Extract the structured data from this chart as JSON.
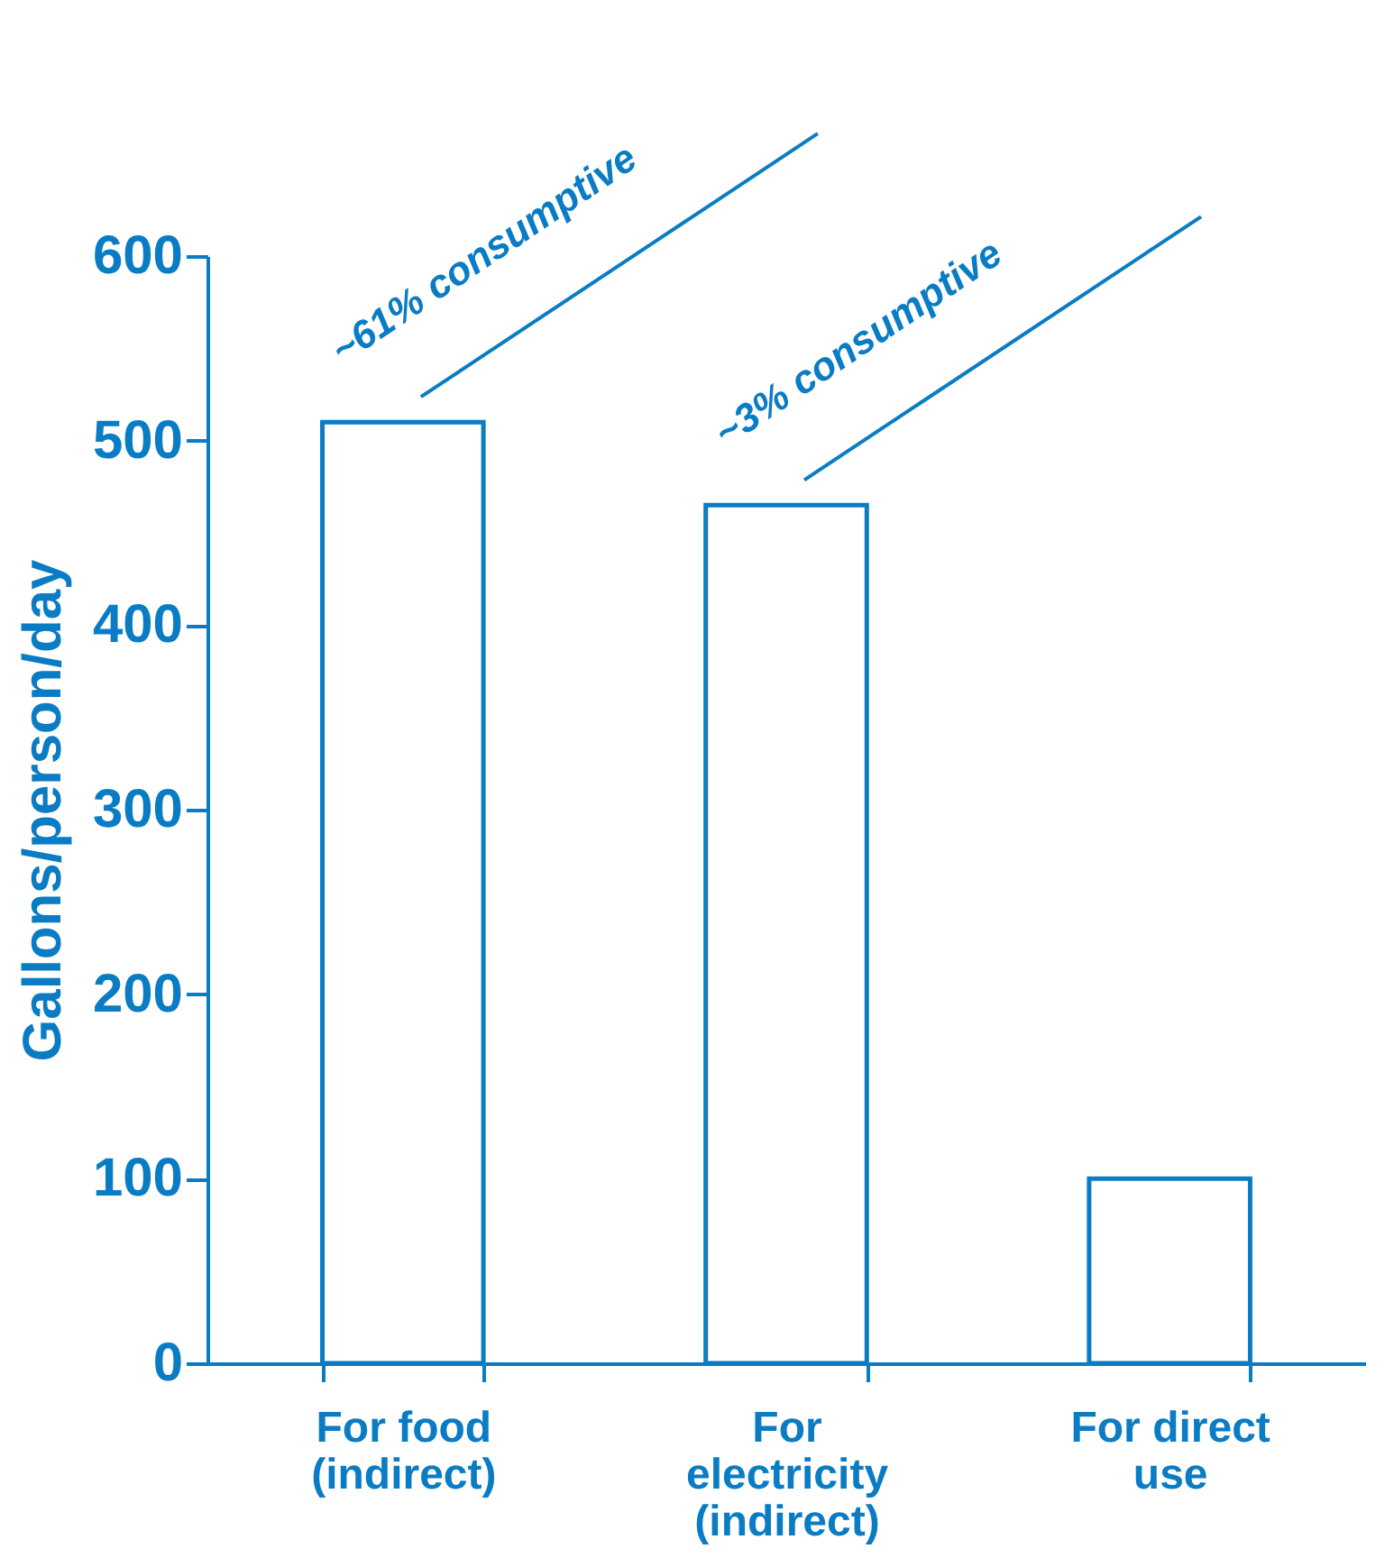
{
  "chart_data": {
    "type": "bar",
    "ylabel": "Gallons/person/day",
    "categories": [
      "For food (indirect)",
      "For electricity (indirect)",
      "For direct use"
    ],
    "values": [
      510,
      465,
      100
    ],
    "color": "#ffffff",
    "ylim": [
      0,
      600
    ],
    "yticks": [
      0,
      100,
      200,
      300,
      400,
      500,
      600
    ],
    "grid": false,
    "annotations": [
      {
        "text": "~61% consumptive",
        "x": "For food (indirect)",
        "y": 510
      },
      {
        "text": "~3% consumptive",
        "x": "For electricity (indirect)",
        "y": 465
      }
    ]
  }
}
